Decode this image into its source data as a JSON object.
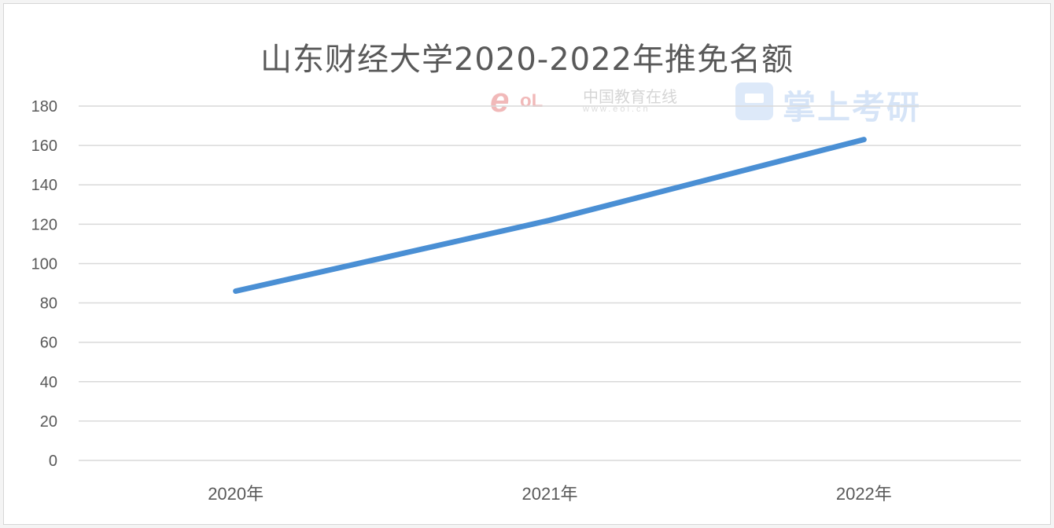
{
  "chart_data": {
    "type": "line",
    "title": "山东财经大学2020-2022年推免名额",
    "categories": [
      "2020年",
      "2021年",
      "2022年"
    ],
    "series": [
      {
        "name": "推免名额",
        "values": [
          86,
          122,
          163
        ],
        "color": "#4a8fd4"
      }
    ],
    "xlabel": "",
    "ylabel": "",
    "ylim": [
      0,
      180
    ],
    "yticks": [
      0,
      20,
      40,
      60,
      80,
      100,
      120,
      140,
      160,
      180
    ],
    "grid": true,
    "legend": "none"
  },
  "watermarks": {
    "eol_logo": "eol",
    "eol_name": "中国教育在线",
    "eol_url": "www.eol.cn",
    "zsky_name": "掌上考研"
  }
}
